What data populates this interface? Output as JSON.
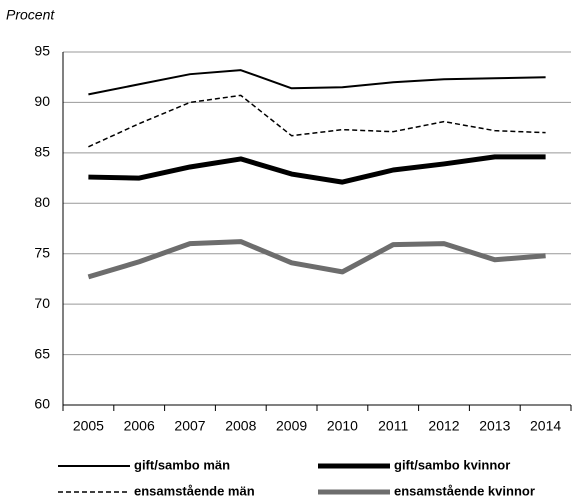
{
  "chart_data": {
    "type": "line",
    "y_label": "Procent",
    "categories": [
      "2005",
      "2006",
      "2007",
      "2008",
      "2009",
      "2010",
      "2011",
      "2012",
      "2013",
      "2014"
    ],
    "ylim": [
      60,
      95
    ],
    "yticks": [
      60,
      65,
      70,
      75,
      80,
      85,
      90,
      95
    ],
    "grid": true,
    "series": [
      {
        "name": "gift/sambo män",
        "color": "#000000",
        "width": 2,
        "dash": "none",
        "values": [
          90.8,
          91.8,
          92.8,
          93.2,
          91.4,
          91.5,
          92.0,
          92.3,
          92.4,
          92.5
        ]
      },
      {
        "name": "gift/sambo kvinnor",
        "color": "#000000",
        "width": 5,
        "dash": "none",
        "values": [
          82.6,
          82.5,
          83.6,
          84.4,
          82.9,
          82.1,
          83.3,
          83.9,
          84.6,
          84.6
        ]
      },
      {
        "name": "ensamstående män",
        "color": "#000000",
        "width": 1.5,
        "dash": "5 3",
        "values": [
          85.6,
          87.9,
          90.0,
          90.7,
          86.7,
          87.3,
          87.1,
          88.1,
          87.2,
          87.0
        ]
      },
      {
        "name": "ensamstående kvinnor",
        "color": "#6d6d6d",
        "width": 5,
        "dash": "none",
        "values": [
          72.7,
          74.2,
          76.0,
          76.2,
          74.1,
          73.2,
          75.9,
          76.0,
          74.4,
          74.8
        ]
      }
    ]
  }
}
